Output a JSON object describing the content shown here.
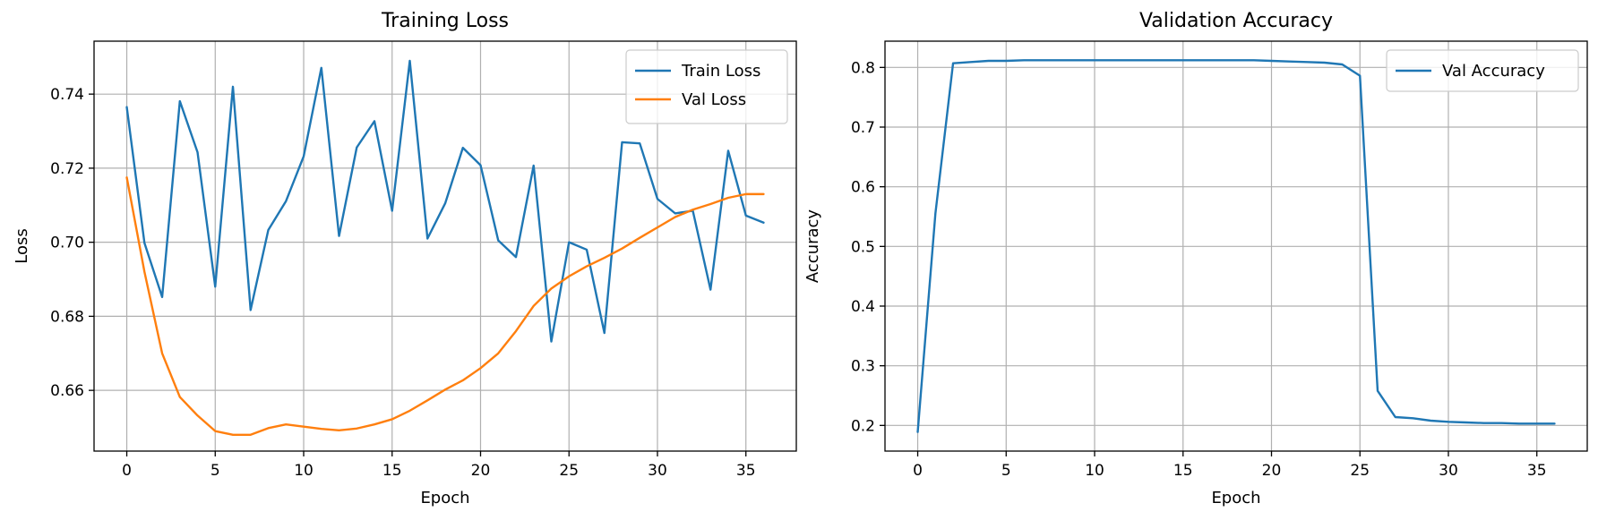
{
  "chart_data": [
    {
      "type": "line",
      "title": "Training Loss",
      "xlabel": "Epoch",
      "ylabel": "Loss",
      "xlim": [
        -1.85,
        37.85
      ],
      "ylim": [
        0.6436,
        0.7543
      ],
      "xticks": [
        0,
        5,
        10,
        15,
        20,
        25,
        30,
        35
      ],
      "yticks": [
        0.66,
        0.68,
        0.7,
        0.72,
        0.74
      ],
      "ytick_labels": [
        "0.66",
        "0.68",
        "0.70",
        "0.72",
        "0.74"
      ],
      "grid": true,
      "legend_position": "top-right",
      "series": [
        {
          "name": "Train Loss",
          "color": "#1f77b4",
          "x": [
            0,
            1,
            2,
            3,
            4,
            5,
            6,
            7,
            8,
            9,
            10,
            11,
            12,
            13,
            14,
            15,
            16,
            17,
            18,
            19,
            20,
            21,
            22,
            23,
            24,
            25,
            26,
            27,
            28,
            29,
            30,
            31,
            32,
            33,
            34,
            35,
            36
          ],
          "values": [
            0.7365,
            0.6998,
            0.6852,
            0.7381,
            0.7243,
            0.688,
            0.742,
            0.6817,
            0.7033,
            0.7111,
            0.7232,
            0.7471,
            0.7017,
            0.7256,
            0.7327,
            0.7085,
            0.749,
            0.701,
            0.7105,
            0.7255,
            0.7208,
            0.7005,
            0.696,
            0.7207,
            0.6732,
            0.7,
            0.698,
            0.6755,
            0.727,
            0.7267,
            0.7117,
            0.7078,
            0.7085,
            0.6872,
            0.7247,
            0.7072,
            0.7053
          ]
        },
        {
          "name": "Val Loss",
          "color": "#ff7f0e",
          "x": [
            0,
            1,
            2,
            3,
            4,
            5,
            6,
            7,
            8,
            9,
            10,
            11,
            12,
            13,
            14,
            15,
            16,
            17,
            18,
            19,
            20,
            21,
            22,
            23,
            24,
            25,
            26,
            27,
            28,
            29,
            30,
            31,
            32,
            33,
            34,
            35,
            36
          ],
          "values": [
            0.7175,
            0.692,
            0.67,
            0.6582,
            0.6532,
            0.649,
            0.648,
            0.648,
            0.6498,
            0.6508,
            0.6502,
            0.6496,
            0.6492,
            0.6497,
            0.6508,
            0.6522,
            0.6545,
            0.6573,
            0.6602,
            0.6627,
            0.666,
            0.67,
            0.676,
            0.6828,
            0.6875,
            0.6908,
            0.6935,
            0.6958,
            0.6983,
            0.7012,
            0.704,
            0.7068,
            0.7088,
            0.7103,
            0.712,
            0.713,
            0.713
          ]
        }
      ]
    },
    {
      "type": "line",
      "title": "Validation Accuracy",
      "xlabel": "Epoch",
      "ylabel": "Accuracy",
      "xlim": [
        -1.85,
        37.85
      ],
      "ylim": [
        0.157,
        0.844
      ],
      "xticks": [
        0,
        5,
        10,
        15,
        20,
        25,
        30,
        35
      ],
      "yticks": [
        0.2,
        0.3,
        0.4,
        0.5,
        0.6,
        0.7,
        0.8
      ],
      "ytick_labels": [
        "0.2",
        "0.3",
        "0.4",
        "0.5",
        "0.6",
        "0.7",
        "0.8"
      ],
      "grid": true,
      "legend_position": "top-right",
      "series": [
        {
          "name": "Val Accuracy",
          "color": "#1f77b4",
          "x": [
            0,
            1,
            2,
            3,
            4,
            5,
            6,
            7,
            8,
            9,
            10,
            11,
            12,
            13,
            14,
            15,
            16,
            17,
            18,
            19,
            20,
            21,
            22,
            23,
            24,
            25,
            26,
            27,
            28,
            29,
            30,
            31,
            32,
            33,
            34,
            35,
            36
          ],
          "values": [
            0.189,
            0.555,
            0.807,
            0.809,
            0.811,
            0.811,
            0.812,
            0.812,
            0.812,
            0.812,
            0.812,
            0.812,
            0.812,
            0.812,
            0.812,
            0.812,
            0.812,
            0.812,
            0.812,
            0.812,
            0.811,
            0.81,
            0.809,
            0.808,
            0.805,
            0.786,
            0.258,
            0.214,
            0.212,
            0.208,
            0.206,
            0.205,
            0.204,
            0.204,
            0.203,
            0.203,
            0.203
          ]
        }
      ]
    }
  ]
}
